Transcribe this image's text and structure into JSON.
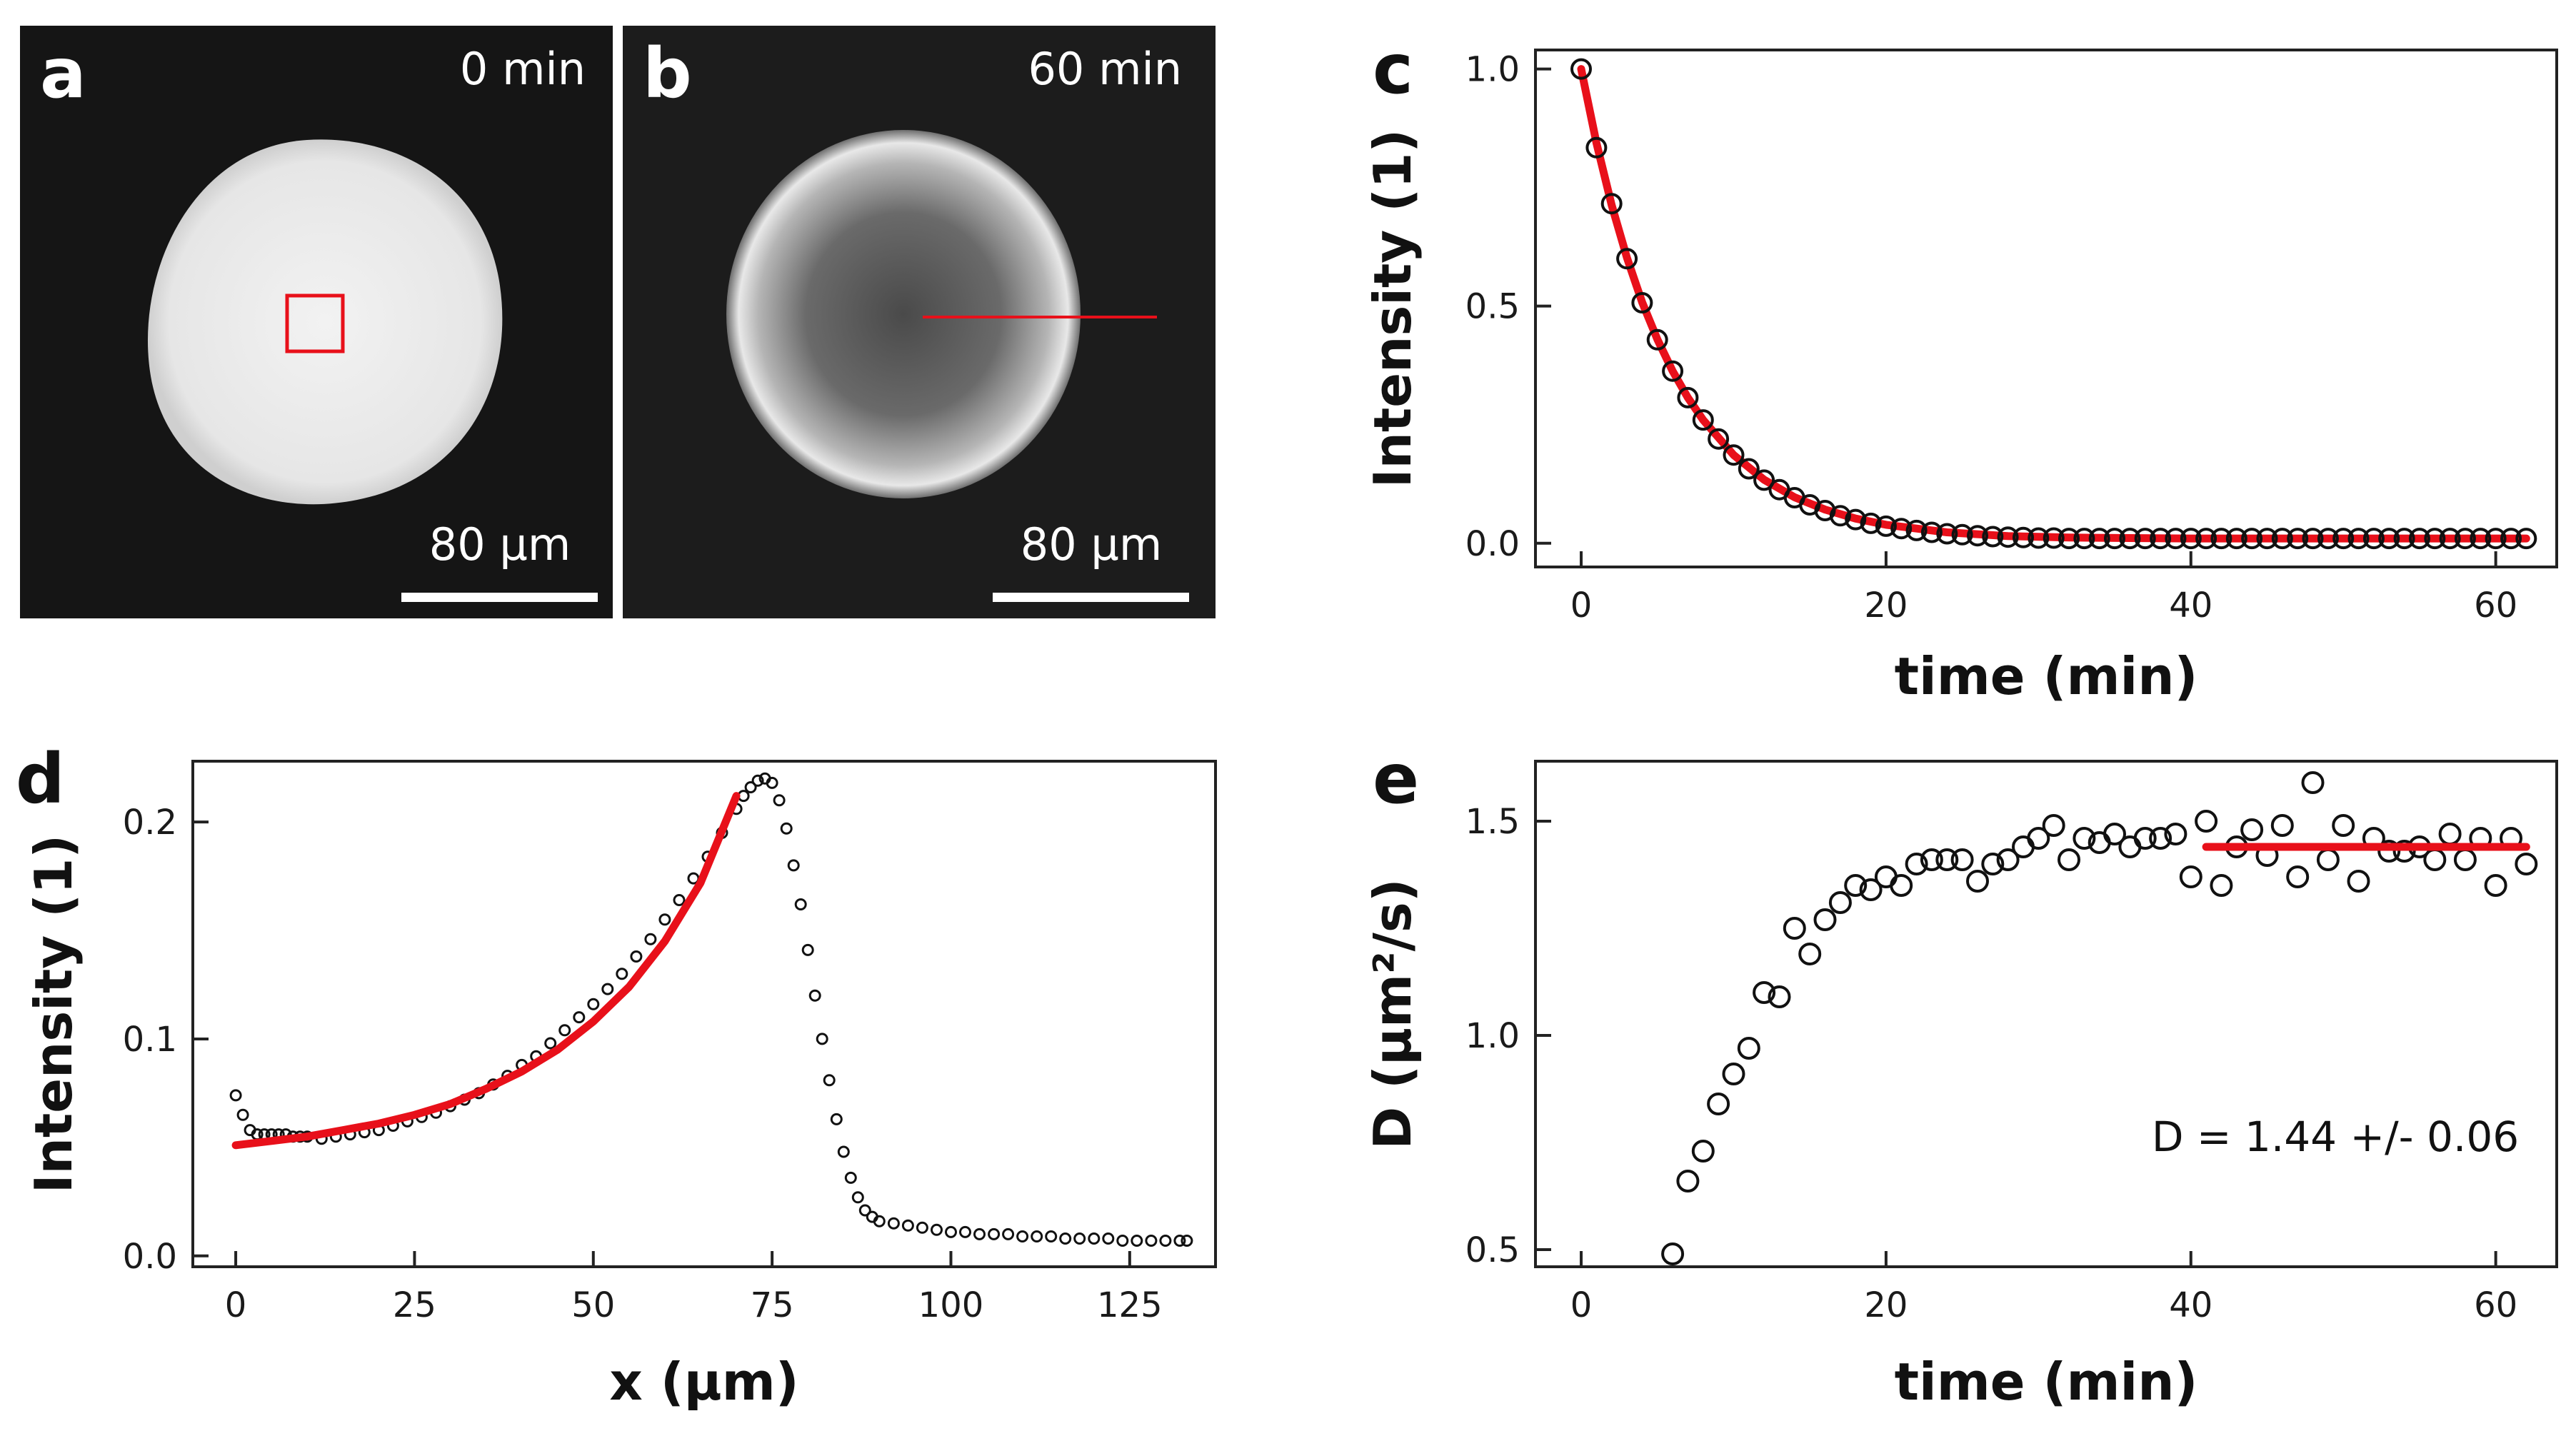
{
  "panels": {
    "a": {
      "letter": "a",
      "time_label": "0 min",
      "scale_label": "80 µm"
    },
    "b": {
      "letter": "b",
      "time_label": "60 min",
      "scale_label": "80 µm"
    },
    "c": {
      "letter": "c"
    },
    "d": {
      "letter": "d"
    },
    "e": {
      "letter": "e",
      "annotation": "D = 1.44 +/- 0.06"
    }
  },
  "colors": {
    "fit": "#e8101a",
    "marker": "#111111",
    "axis": "#222222",
    "image_bg": "#151515"
  },
  "chart_data": [
    {
      "id": "c",
      "type": "scatter",
      "title": "",
      "xlabel": "time (min)",
      "ylabel": "Intensity (1)",
      "xlim": [
        -3,
        64
      ],
      "ylim": [
        -0.05,
        1.04
      ],
      "xticks": [
        0,
        20,
        40,
        60
      ],
      "yticks": [
        0.0,
        0.5,
        1.0
      ],
      "xtick_labels": [
        "0",
        "20",
        "40",
        "60"
      ],
      "ytick_labels": [
        "0.0",
        "0.5",
        "1.0"
      ],
      "series": [
        {
          "name": "data",
          "kind": "markers",
          "x": [
            0,
            1,
            2,
            3,
            4,
            5,
            6,
            7,
            8,
            9,
            10,
            11,
            12,
            13,
            14,
            15,
            16,
            17,
            18,
            19,
            20,
            21,
            22,
            23,
            24,
            25,
            26,
            27,
            28,
            29,
            30,
            31,
            32,
            33,
            34,
            35,
            36,
            37,
            38,
            39,
            40,
            41,
            42,
            43,
            44,
            45,
            46,
            47,
            48,
            49,
            50,
            51,
            52,
            53,
            54,
            55,
            56,
            57,
            58,
            59,
            60,
            61,
            62
          ],
          "y": [
            1.0,
            0.834,
            0.716,
            0.6,
            0.507,
            0.429,
            0.363,
            0.307,
            0.26,
            0.22,
            0.186,
            0.157,
            0.133,
            0.113,
            0.096,
            0.081,
            0.069,
            0.058,
            0.05,
            0.042,
            0.036,
            0.031,
            0.027,
            0.023,
            0.02,
            0.018,
            0.016,
            0.014,
            0.013,
            0.012,
            0.011,
            0.011,
            0.01,
            0.01,
            0.01,
            0.01,
            0.01,
            0.01,
            0.01,
            0.01,
            0.01,
            0.01,
            0.01,
            0.01,
            0.01,
            0.01,
            0.01,
            0.01,
            0.01,
            0.01,
            0.01,
            0.01,
            0.01,
            0.01,
            0.01,
            0.01,
            0.01,
            0.01,
            0.01,
            0.01,
            0.01,
            0.01,
            0.01
          ]
        },
        {
          "name": "fit",
          "kind": "line",
          "x": [
            0,
            1,
            2,
            3,
            4,
            5,
            6,
            7,
            8,
            10,
            12,
            14,
            16,
            18,
            20,
            24,
            28,
            32,
            36,
            40,
            45,
            50,
            55,
            60,
            62
          ],
          "y": [
            1.0,
            0.844,
            0.713,
            0.602,
            0.508,
            0.43,
            0.363,
            0.307,
            0.26,
            0.186,
            0.134,
            0.097,
            0.071,
            0.052,
            0.039,
            0.023,
            0.015,
            0.012,
            0.011,
            0.01,
            0.01,
            0.01,
            0.01,
            0.01,
            0.01
          ]
        }
      ]
    },
    {
      "id": "d",
      "type": "scatter",
      "title": "",
      "xlabel": "x (µm)",
      "ylabel": "Intensity (1)",
      "xlim": [
        -6,
        137
      ],
      "ylim": [
        -0.005,
        0.228
      ],
      "xticks": [
        0,
        25,
        50,
        75,
        100,
        125
      ],
      "yticks": [
        0.0,
        0.1,
        0.2
      ],
      "xtick_labels": [
        "0",
        "25",
        "50",
        "75",
        "100",
        "125"
      ],
      "ytick_labels": [
        "0.0",
        "0.1",
        "0.2"
      ],
      "series": [
        {
          "name": "profile",
          "kind": "markers",
          "x": [
            0,
            1,
            2,
            3,
            4,
            5,
            6,
            7,
            8,
            9,
            10,
            12,
            14,
            16,
            18,
            20,
            22,
            24,
            26,
            28,
            30,
            32,
            34,
            36,
            38,
            40,
            42,
            44,
            46,
            48,
            50,
            52,
            54,
            56,
            58,
            60,
            62,
            64,
            66,
            68,
            70,
            71,
            72,
            73,
            74,
            75,
            76,
            77,
            78,
            79,
            80,
            81,
            82,
            83,
            84,
            85,
            86,
            87,
            88,
            89,
            90,
            92,
            94,
            96,
            98,
            100,
            102,
            104,
            106,
            108,
            110,
            112,
            114,
            116,
            118,
            120,
            122,
            124,
            126,
            128,
            130,
            132,
            133
          ],
          "y": [
            0.074,
            0.065,
            0.058,
            0.056,
            0.056,
            0.056,
            0.056,
            0.056,
            0.055,
            0.055,
            0.055,
            0.054,
            0.055,
            0.056,
            0.057,
            0.058,
            0.06,
            0.062,
            0.064,
            0.066,
            0.069,
            0.072,
            0.075,
            0.079,
            0.083,
            0.088,
            0.092,
            0.098,
            0.104,
            0.11,
            0.116,
            0.123,
            0.13,
            0.138,
            0.146,
            0.155,
            0.164,
            0.174,
            0.184,
            0.195,
            0.206,
            0.212,
            0.216,
            0.219,
            0.22,
            0.218,
            0.21,
            0.197,
            0.18,
            0.162,
            0.141,
            0.12,
            0.1,
            0.081,
            0.063,
            0.048,
            0.036,
            0.027,
            0.021,
            0.018,
            0.016,
            0.015,
            0.014,
            0.013,
            0.012,
            0.011,
            0.011,
            0.01,
            0.01,
            0.01,
            0.009,
            0.009,
            0.009,
            0.008,
            0.008,
            0.008,
            0.008,
            0.007,
            0.007,
            0.007,
            0.007,
            0.007,
            0.007
          ]
        },
        {
          "name": "fit",
          "kind": "line",
          "x": [
            0,
            5,
            10,
            15,
            20,
            25,
            30,
            35,
            40,
            45,
            50,
            55,
            60,
            65,
            70
          ],
          "y": [
            0.051,
            0.053,
            0.055,
            0.058,
            0.061,
            0.065,
            0.07,
            0.077,
            0.085,
            0.095,
            0.108,
            0.124,
            0.145,
            0.172,
            0.212
          ]
        }
      ]
    },
    {
      "id": "e",
      "type": "scatter",
      "title": "",
      "xlabel": "time (min)",
      "ylabel": "D (µm²/s)",
      "xlim": [
        -3,
        64
      ],
      "ylim": [
        0.46,
        1.64
      ],
      "xticks": [
        0,
        20,
        40,
        60
      ],
      "yticks": [
        0.5,
        1.0,
        1.5
      ],
      "xtick_labels": [
        "0",
        "20",
        "40",
        "60"
      ],
      "ytick_labels": [
        "0.5",
        "1.0",
        "1.5"
      ],
      "series": [
        {
          "name": "D",
          "kind": "markers",
          "x": [
            6,
            7,
            8,
            9,
            10,
            11,
            12,
            13,
            14,
            15,
            16,
            17,
            18,
            19,
            20,
            21,
            22,
            23,
            24,
            25,
            26,
            27,
            28,
            29,
            30,
            31,
            32,
            33,
            34,
            35,
            36,
            37,
            38,
            39,
            40,
            41,
            42,
            43,
            44,
            45,
            46,
            47,
            48,
            49,
            50,
            51,
            52,
            53,
            54,
            55,
            56,
            57,
            58,
            59,
            60,
            61,
            62
          ],
          "y": [
            0.49,
            0.66,
            0.73,
            0.84,
            0.91,
            0.97,
            1.1,
            1.09,
            1.25,
            1.19,
            1.27,
            1.31,
            1.35,
            1.34,
            1.37,
            1.35,
            1.4,
            1.41,
            1.41,
            1.41,
            1.36,
            1.4,
            1.41,
            1.44,
            1.46,
            1.49,
            1.41,
            1.46,
            1.45,
            1.47,
            1.44,
            1.46,
            1.46,
            1.47,
            1.37,
            1.5,
            1.35,
            1.44,
            1.48,
            1.42,
            1.49,
            1.37,
            1.59,
            1.41,
            1.49,
            1.36,
            1.46,
            1.43,
            1.43,
            1.44,
            1.41,
            1.47,
            1.41,
            1.46,
            1.35,
            1.46,
            1.4
          ]
        },
        {
          "name": "mean",
          "kind": "line",
          "x": [
            41,
            62
          ],
          "y": [
            1.44,
            1.44
          ]
        }
      ]
    }
  ]
}
